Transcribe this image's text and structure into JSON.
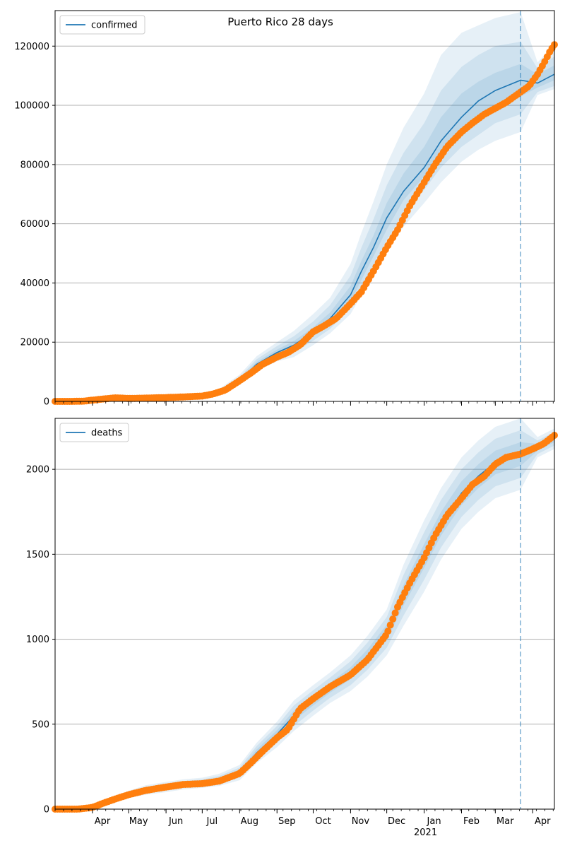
{
  "title": "Puerto Rico 28 days",
  "colors": {
    "model": "#1f77b4",
    "observed": "#ff7f0e",
    "band": "#1f77b4",
    "grid": "#b0b0b0",
    "forecast_line": "#1f77b4"
  },
  "x_axis": {
    "start": "2020-03-01",
    "end": "2021-04-19",
    "month_ticks": [
      "2020-04-01",
      "2020-05-01",
      "2020-06-01",
      "2020-07-01",
      "2020-08-01",
      "2020-09-01",
      "2020-10-01",
      "2020-11-01",
      "2020-12-01",
      "2021-01-01",
      "2021-02-01",
      "2021-03-01",
      "2021-04-01"
    ],
    "month_labels": [
      "Apr",
      "May",
      "Jun",
      "Jul",
      "Aug",
      "Sep",
      "Oct",
      "Nov",
      "Dec",
      "Jan",
      "Feb",
      "Mar",
      "Apr"
    ],
    "year_label": "2021",
    "forecast_date": "2021-03-22"
  },
  "chart_data": [
    {
      "type": "line",
      "legend": "confirmed",
      "legend_position": "top-left",
      "grid": "y",
      "ylim": [
        0,
        132000
      ],
      "yticks": [
        0,
        20000,
        40000,
        60000,
        80000,
        100000,
        120000
      ],
      "ytick_labels": [
        "0",
        "20000",
        "40000",
        "60000",
        "80000",
        "100000",
        "120000"
      ],
      "model": {
        "x": [
          "2020-03-01",
          "2020-04-01",
          "2020-05-01",
          "2020-06-01",
          "2020-07-01",
          "2020-07-15",
          "2020-08-01",
          "2020-08-15",
          "2020-09-01",
          "2020-09-15",
          "2020-10-01",
          "2020-10-15",
          "2020-11-01",
          "2020-11-10",
          "2020-11-20",
          "2020-12-01",
          "2020-12-15",
          "2021-01-01",
          "2021-01-15",
          "2021-02-01",
          "2021-02-15",
          "2021-03-01",
          "2021-03-22",
          "2021-04-05",
          "2021-04-19"
        ],
        "y": [
          0,
          500,
          1000,
          1300,
          1900,
          3200,
          7000,
          12500,
          16500,
          19000,
          23500,
          28000,
          36000,
          44000,
          52000,
          62000,
          71000,
          79000,
          88000,
          96000,
          101500,
          105000,
          108500,
          107500,
          110500
        ],
        "bands": [
          {
            "level": "inner",
            "lo": [
              0,
              450,
              900,
              1200,
              1800,
              2900,
              6500,
              11800,
              15500,
              17800,
              22000,
              26000,
              33500,
              41000,
              49000,
              58000,
              68000,
              76000,
              84000,
              91000,
              96000,
              100000,
              103000,
              106000,
              108500
            ],
            "hi": [
              0,
              550,
              1100,
              1400,
              2000,
              3500,
              7600,
              13300,
              17500,
              20400,
              25000,
              30000,
              39000,
              47500,
              56000,
              67000,
              77000,
              86000,
              96000,
              104000,
              108000,
              111000,
              114000,
              110500,
              113500
            ]
          },
          {
            "level": "middle",
            "lo": [
              0,
              400,
              800,
              1100,
              1700,
              2600,
              6000,
              11000,
              14500,
              16500,
              20500,
              24500,
              31500,
              38500,
              46000,
              54500,
              63500,
              71500,
              79000,
              86000,
              90000,
              94000,
              97000,
              104500,
              106500
            ],
            "hi": [
              0,
              600,
              1200,
              1500,
              2100,
              3800,
              8200,
              14200,
              18700,
              22000,
              27000,
              32500,
              42500,
              52000,
              61500,
              73000,
              84000,
              94000,
              105000,
              113000,
              117000,
              120000,
              121500,
              112500,
              116500
            ]
          },
          {
            "level": "outer",
            "lo": [
              0,
              350,
              700,
              1000,
              1600,
              2300,
              5500,
              10200,
              13500,
              15000,
              19000,
              23000,
              29500,
              36000,
              43000,
              51000,
              59000,
              67000,
              74000,
              81000,
              85000,
              88000,
              91000,
              103500,
              105500
            ],
            "hi": [
              0,
              650,
              1300,
              1600,
              2300,
              4200,
              9000,
              15200,
              20000,
              23800,
              29500,
              35000,
              46500,
              57000,
              67500,
              80000,
              92500,
              104000,
              117000,
              124500,
              127000,
              129500,
              131500,
              114500,
              120500
            ]
          }
        ]
      },
      "observed": {
        "x": [
          "2020-03-01",
          "2020-03-15",
          "2020-03-25",
          "2020-04-05",
          "2020-04-20",
          "2020-05-01",
          "2020-05-15",
          "2020-06-01",
          "2020-06-15",
          "2020-07-01",
          "2020-07-10",
          "2020-07-20",
          "2020-08-01",
          "2020-08-10",
          "2020-08-20",
          "2020-09-01",
          "2020-09-10",
          "2020-09-20",
          "2020-10-01",
          "2020-10-10",
          "2020-10-20",
          "2020-11-01",
          "2020-11-10",
          "2020-11-20",
          "2020-12-01",
          "2020-12-10",
          "2020-12-20",
          "2021-01-01",
          "2021-01-10",
          "2021-01-20",
          "2021-02-01",
          "2021-02-10",
          "2021-02-20",
          "2021-03-01",
          "2021-03-10",
          "2021-03-22",
          "2021-03-29",
          "2021-04-05",
          "2021-04-10",
          "2021-04-15",
          "2021-04-19"
        ],
        "y": [
          0,
          0,
          100,
          600,
          1200,
          1000,
          1100,
          1300,
          1500,
          1800,
          2500,
          3800,
          7000,
          9500,
          12500,
          15000,
          16500,
          19000,
          23500,
          25500,
          28000,
          33000,
          37000,
          44000,
          52000,
          58000,
          66000,
          74000,
          80000,
          86000,
          91000,
          94000,
          97000,
          99000,
          101000,
          104500,
          106500,
          110500,
          114000,
          118000,
          120500
        ]
      }
    },
    {
      "type": "line",
      "legend": "deaths",
      "legend_position": "top-left",
      "grid": "y",
      "ylim": [
        0,
        2300
      ],
      "yticks": [
        0,
        500,
        1000,
        1500,
        2000
      ],
      "ytick_labels": [
        "0",
        "500",
        "1000",
        "1500",
        "2000"
      ],
      "model": {
        "x": [
          "2020-03-01",
          "2020-04-01",
          "2020-04-15",
          "2020-05-01",
          "2020-05-15",
          "2020-06-01",
          "2020-06-15",
          "2020-07-01",
          "2020-07-15",
          "2020-08-01",
          "2020-08-15",
          "2020-09-01",
          "2020-09-15",
          "2020-10-01",
          "2020-10-15",
          "2020-11-01",
          "2020-11-15",
          "2020-12-01",
          "2020-12-15",
          "2021-01-01",
          "2021-01-15",
          "2021-02-01",
          "2021-02-15",
          "2021-03-01",
          "2021-03-22",
          "2021-04-05",
          "2021-04-19"
        ],
        "y": [
          0,
          10,
          45,
          85,
          110,
          130,
          145,
          155,
          170,
          215,
          330,
          440,
          550,
          640,
          715,
          800,
          900,
          1040,
          1260,
          1490,
          1680,
          1860,
          1960,
          2040,
          2090,
          2130,
          2180
        ],
        "bands": [
          {
            "level": "inner",
            "lo": [
              0,
              8,
              40,
              78,
              100,
              120,
              135,
              145,
              158,
              200,
              310,
              415,
              520,
              610,
              685,
              765,
              860,
              995,
              1200,
              1420,
              1610,
              1790,
              1890,
              1970,
              2020,
              2110,
              2160
            ],
            "hi": [
              0,
              12,
              50,
              92,
              120,
              140,
              155,
              165,
              182,
              230,
              350,
              465,
              580,
              670,
              745,
              835,
              940,
              1085,
              1320,
              1560,
              1750,
              1930,
              2030,
              2110,
              2160,
              2150,
              2200
            ]
          },
          {
            "level": "middle",
            "lo": [
              0,
              6,
              35,
              72,
              92,
              110,
              125,
              135,
              147,
              185,
              290,
              390,
              490,
              580,
              655,
              730,
              820,
              950,
              1140,
              1350,
              1540,
              1720,
              1820,
              1900,
              1950,
              2090,
              2140
            ],
            "hi": [
              0,
              14,
              55,
              100,
              130,
              150,
              165,
              175,
              195,
              245,
              370,
              490,
              610,
              700,
              775,
              870,
              980,
              1130,
              1380,
              1630,
              1820,
              2000,
              2100,
              2180,
              2230,
              2170,
              2220
            ]
          },
          {
            "level": "outer",
            "lo": [
              0,
              4,
              30,
              66,
              85,
              100,
              115,
              125,
              137,
              170,
              270,
              365,
              460,
              550,
              625,
              695,
              780,
              905,
              1080,
              1280,
              1470,
              1650,
              1750,
              1830,
              1880,
              2070,
              2120
            ],
            "hi": [
              0,
              16,
              60,
              108,
              140,
              160,
              175,
              185,
              208,
              260,
              390,
              515,
              640,
              730,
              805,
              905,
              1020,
              1175,
              1440,
              1700,
              1890,
              2070,
              2170,
              2250,
              2300,
              2190,
              2240
            ]
          }
        ]
      },
      "observed": {
        "x": [
          "2020-03-01",
          "2020-03-20",
          "2020-04-01",
          "2020-04-10",
          "2020-04-20",
          "2020-05-01",
          "2020-05-15",
          "2020-06-01",
          "2020-06-15",
          "2020-07-01",
          "2020-07-15",
          "2020-08-01",
          "2020-08-10",
          "2020-08-20",
          "2020-09-01",
          "2020-09-10",
          "2020-09-20",
          "2020-10-01",
          "2020-10-15",
          "2020-11-01",
          "2020-11-15",
          "2020-12-01",
          "2020-12-10",
          "2020-12-20",
          "2021-01-01",
          "2021-01-10",
          "2021-01-20",
          "2021-02-01",
          "2021-02-10",
          "2021-02-20",
          "2021-03-01",
          "2021-03-10",
          "2021-03-22",
          "2021-04-01",
          "2021-04-10",
          "2021-04-19"
        ],
        "y": [
          0,
          0,
          10,
          35,
          60,
          85,
          110,
          130,
          145,
          150,
          165,
          210,
          270,
          340,
          420,
          470,
          590,
          650,
          720,
          790,
          880,
          1030,
          1190,
          1330,
          1480,
          1610,
          1730,
          1830,
          1910,
          1960,
          2030,
          2070,
          2090,
          2120,
          2150,
          2200
        ]
      }
    }
  ]
}
